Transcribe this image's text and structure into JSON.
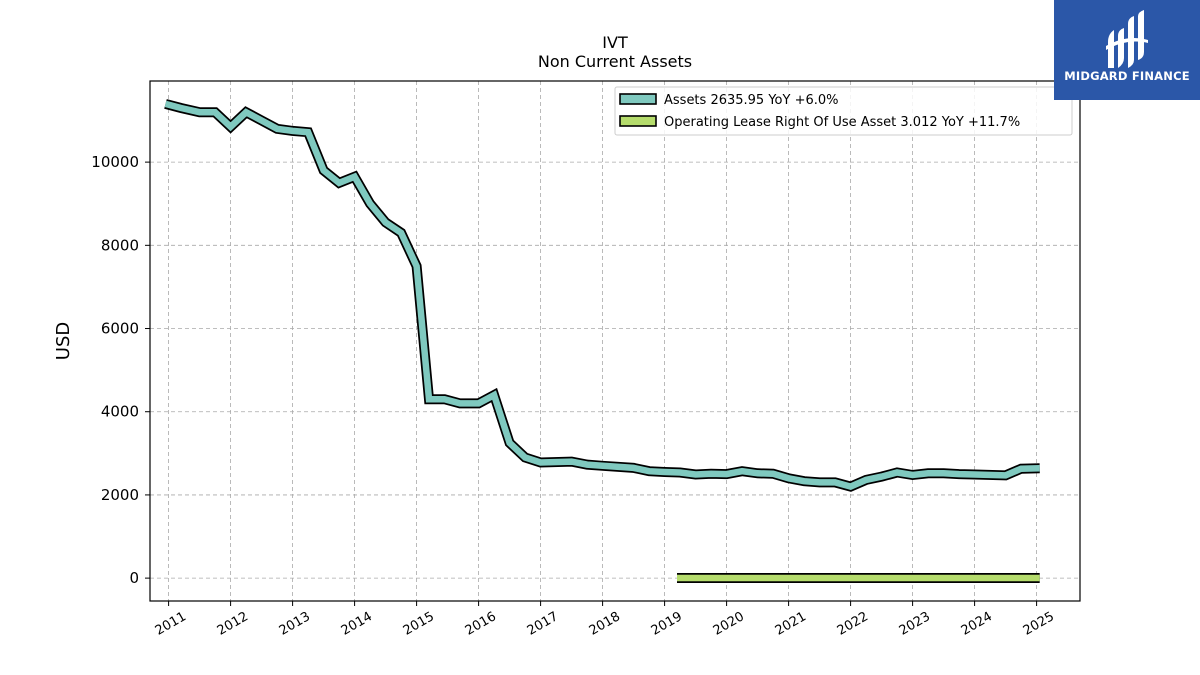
{
  "chart_data": {
    "type": "line",
    "title": "IVT",
    "subtitle": "Non Current  Assets",
    "ylabel": "USD",
    "xlabel": "",
    "xlim": [
      2010.7,
      2025.7
    ],
    "ylim": [
      -550,
      11950
    ],
    "yticks": [
      0,
      2000,
      4000,
      6000,
      8000,
      10000
    ],
    "xticks": [
      "2011",
      "2012",
      "2013",
      "2014",
      "2015",
      "2016",
      "2017",
      "2018",
      "2019",
      "2020",
      "2021",
      "2022",
      "2023",
      "2024",
      "2025"
    ],
    "grid": true,
    "legend_position": "top-right",
    "series": [
      {
        "name": "Assets  2635.95 YoY +6.0%",
        "color": "#7fc9bf",
        "x": [
          2010.95,
          2011.2,
          2011.5,
          2011.75,
          2012.0,
          2012.25,
          2012.5,
          2012.75,
          2013.0,
          2013.25,
          2013.5,
          2013.75,
          2014.0,
          2014.25,
          2014.5,
          2014.75,
          2015.0,
          2015.2,
          2015.45,
          2015.7,
          2016.0,
          2016.25,
          2016.5,
          2016.75,
          2017.0,
          2017.5,
          2017.75,
          2018.0,
          2018.5,
          2018.75,
          2019.0,
          2019.25,
          2019.5,
          2019.75,
          2020.0,
          2020.25,
          2020.5,
          2020.75,
          2021.0,
          2021.25,
          2021.5,
          2021.75,
          2022.0,
          2022.25,
          2022.5,
          2022.75,
          2023.0,
          2023.25,
          2023.5,
          2023.75,
          2024.0,
          2024.5,
          2024.75,
          2025.05
        ],
        "values": [
          11400,
          11300,
          11200,
          11200,
          10850,
          11200,
          11000,
          10800,
          10750,
          10720,
          9800,
          9500,
          9650,
          9000,
          8550,
          8300,
          7500,
          4300,
          4300,
          4200,
          4200,
          4400,
          3250,
          2900,
          2780,
          2800,
          2730,
          2700,
          2650,
          2570,
          2550,
          2540,
          2490,
          2510,
          2500,
          2570,
          2520,
          2510,
          2400,
          2330,
          2300,
          2300,
          2200,
          2360,
          2440,
          2540,
          2480,
          2520,
          2520,
          2500,
          2490,
          2470,
          2630,
          2640
        ]
      },
      {
        "name": "Operating Lease Right Of Use Asset  3.012 YoY +11.7%",
        "color": "#b5dc6c",
        "x": [
          2019.2,
          2025.05
        ],
        "values": [
          3,
          3
        ]
      }
    ]
  },
  "logo": {
    "text": "MIDGARD FINANCE"
  }
}
